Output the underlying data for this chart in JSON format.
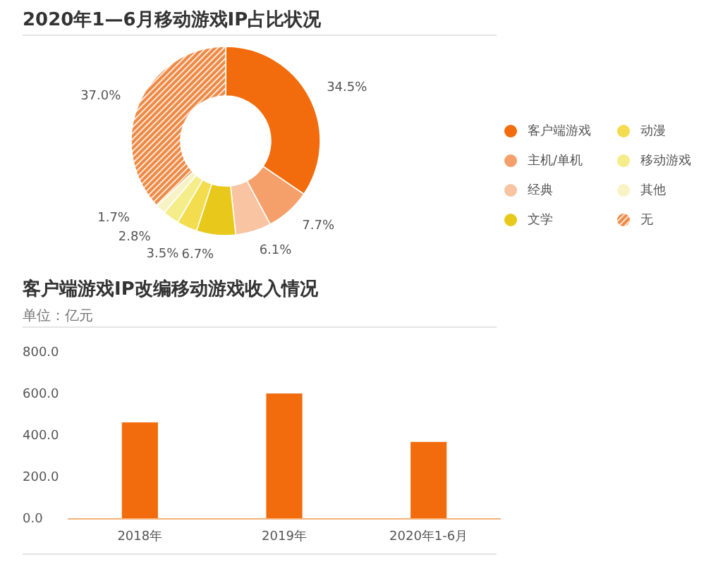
{
  "chart_data": [
    {
      "type": "donut",
      "title": "2020年1—6月移动游戏IP占比状况",
      "categories": [
        "客户端游戏",
        "主机/单机",
        "经典",
        "文学",
        "动漫",
        "移动游戏",
        "其他",
        "无"
      ],
      "values": [
        34.5,
        7.7,
        6.1,
        6.7,
        3.5,
        2.8,
        1.7,
        37.0
      ],
      "colors": [
        "#f26c0d",
        "#f5a06a",
        "#f8c4a2",
        "#e8c81a",
        "#f3dc4d",
        "#f5ec8a",
        "#f8f3c4",
        "#ee8a45"
      ],
      "value_labels": [
        "34.5%",
        "7.7%",
        "6.1%",
        "6.7%",
        "3.5%",
        "2.8%",
        "1.7%",
        "37.0%"
      ],
      "legend": "right"
    },
    {
      "type": "bar",
      "title": "客户端游戏IP改编移动游戏收入情况",
      "subtitle": "单位：亿元",
      "categories": [
        "2018年",
        "2019年",
        "2020年1-6月"
      ],
      "values": [
        464,
        603,
        370
      ],
      "color": "#f26c0d",
      "ylim": [
        0,
        800
      ],
      "yticks": [
        {
          "value": 0,
          "label": "0.0"
        },
        {
          "value": 200,
          "label": "200.0"
        },
        {
          "value": 400,
          "label": "400.0"
        },
        {
          "value": 600,
          "label": "600.0"
        },
        {
          "value": 800,
          "label": "800.0"
        }
      ],
      "grid": false
    }
  ]
}
